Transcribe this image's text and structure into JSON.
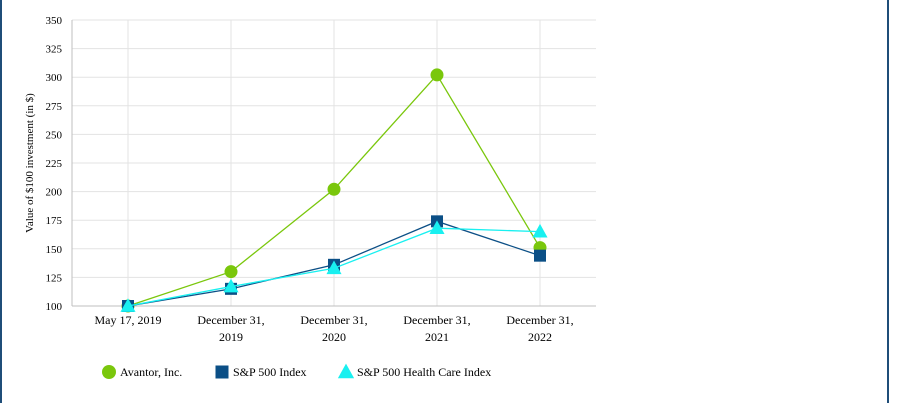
{
  "chart_data": {
    "type": "line",
    "title": "",
    "xlabel": "",
    "ylabel": "Value of $100 investment (in $)",
    "categories": [
      [
        "May 17, 2019"
      ],
      [
        "December 31,",
        "2019"
      ],
      [
        "December 31,",
        "2020"
      ],
      [
        "December 31,",
        "2021"
      ],
      [
        "December 31,",
        "2022"
      ]
    ],
    "ylim": [
      100,
      350
    ],
    "yticks": [
      100,
      125,
      150,
      175,
      200,
      225,
      250,
      275,
      300,
      325,
      350
    ],
    "grid": true,
    "legend_position": "bottom",
    "series": [
      {
        "name": "Avantor, Inc.",
        "marker": "circle",
        "color": "#7ac70c",
        "values": [
          100,
          130,
          202,
          302,
          151
        ]
      },
      {
        "name": "S&P 500 Index",
        "marker": "square",
        "color": "#0b4f86",
        "values": [
          100,
          115,
          136,
          174,
          144
        ]
      },
      {
        "name": "S&P 500 Health Care Index",
        "marker": "triangle",
        "color": "#19f0f0",
        "values": [
          100,
          117,
          133,
          168,
          165
        ]
      }
    ]
  }
}
